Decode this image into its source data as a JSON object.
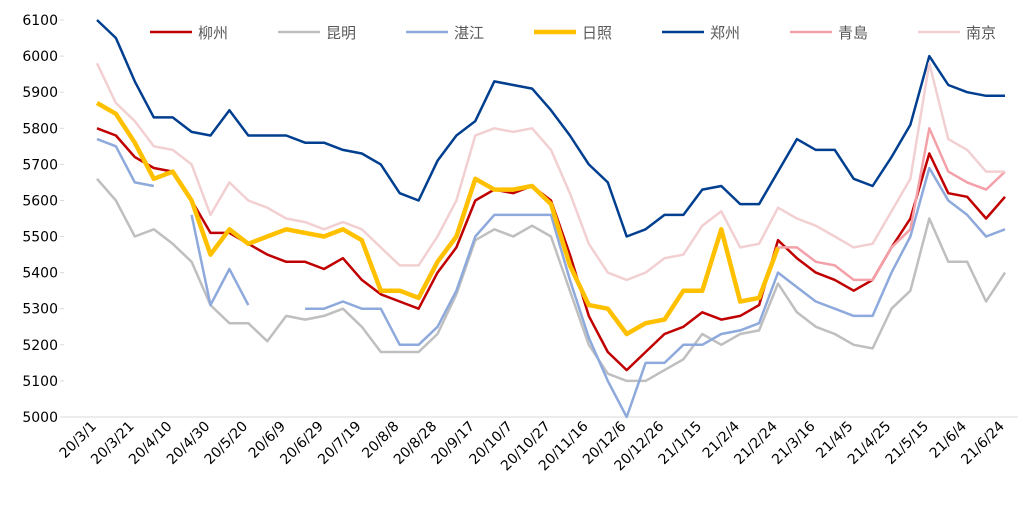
{
  "chart_data": {
    "type": "line",
    "categories": [
      "20/3/1",
      null,
      "20/3/21",
      null,
      "20/4/10",
      null,
      "20/4/30",
      null,
      "20/5/20",
      null,
      "20/6/9",
      null,
      "20/6/29",
      null,
      "20/7/19",
      null,
      "20/8/8",
      null,
      "20/8/28",
      null,
      "20/9/17",
      null,
      "20/10/7",
      null,
      "20/10/27",
      null,
      "20/11/16",
      null,
      "20/12/6",
      null,
      "20/12/26",
      null,
      "21/1/15",
      null,
      "21/2/4",
      null,
      "21/2/24",
      null,
      "21/3/16",
      null,
      "21/4/5",
      null,
      "21/4/25",
      null,
      "21/5/15",
      null,
      "21/6/4",
      null,
      "21/6/24"
    ],
    "series": [
      {
        "name": "柳州",
        "color": "#c00000",
        "width": 2.5,
        "values": [
          5800,
          5780,
          5720,
          5690,
          5680,
          5600,
          5510,
          5510,
          5480,
          5450,
          5430,
          5430,
          5410,
          5440,
          5380,
          5340,
          5320,
          5300,
          5400,
          5470,
          5600,
          5630,
          5620,
          5640,
          5600,
          5450,
          5280,
          5180,
          5130,
          5180,
          5230,
          5250,
          5290,
          5270,
          5280,
          5310,
          5490,
          5440,
          5400,
          5380,
          5350,
          5380,
          5470,
          5550,
          5730,
          5620,
          5610,
          5550,
          5610
        ]
      },
      {
        "name": "昆明",
        "color": "#bfbfbf",
        "width": 2.5,
        "values": [
          5660,
          5600,
          5500,
          5520,
          5480,
          5430,
          5310,
          5260,
          5260,
          5210,
          5280,
          5270,
          5280,
          5300,
          5250,
          5180,
          5180,
          5180,
          5230,
          5340,
          5490,
          5520,
          5500,
          5530,
          5500,
          5350,
          5200,
          5120,
          5100,
          5100,
          5130,
          5160,
          5230,
          5200,
          5230,
          5240,
          5370,
          5290,
          5250,
          5230,
          5200,
          5190,
          5300,
          5350,
          5550,
          5430,
          5430,
          5320,
          5400
        ]
      },
      {
        "name": "湛江",
        "color": "#8ea9db",
        "width": 2.5,
        "values": [
          5770,
          5750,
          5650,
          5640,
          null,
          5560,
          5310,
          5410,
          5310,
          null,
          null,
          5300,
          5300,
          5320,
          5300,
          5300,
          5200,
          5200,
          5250,
          5350,
          5500,
          5560,
          5560,
          5560,
          5560,
          5380,
          5220,
          5100,
          5000,
          5150,
          5150,
          5200,
          5200,
          5230,
          5240,
          5260,
          5400,
          5360,
          5320,
          5300,
          5280,
          5280,
          5400,
          5500,
          5690,
          5600,
          5560,
          5500,
          5520
        ]
      },
      {
        "name": "日照",
        "color": "#ffc000",
        "width": 4.5,
        "values": [
          5870,
          5840,
          5760,
          5660,
          5680,
          5600,
          5450,
          5520,
          5480,
          5500,
          5520,
          5510,
          5500,
          5520,
          5490,
          5350,
          5350,
          5330,
          5430,
          5500,
          5660,
          5630,
          5630,
          5640,
          5590,
          5420,
          5310,
          5300,
          5230,
          5260,
          5270,
          5350,
          5350,
          5520,
          5320,
          5330,
          5470,
          null,
          null,
          null,
          null,
          null,
          null,
          null,
          null,
          null,
          null,
          null,
          null
        ]
      },
      {
        "name": "郑州",
        "color": "#003f8f",
        "width": 2.5,
        "values": [
          6100,
          6050,
          5930,
          5830,
          5830,
          5790,
          5780,
          5850,
          5780,
          5780,
          5780,
          5760,
          5760,
          5740,
          5730,
          5700,
          5620,
          5600,
          5710,
          5780,
          5820,
          5930,
          5920,
          5910,
          5850,
          5780,
          5700,
          5650,
          5500,
          5520,
          5560,
          5560,
          5630,
          5640,
          5590,
          5590,
          5680,
          5770,
          5740,
          5740,
          5660,
          5640,
          5720,
          5810,
          6000,
          5920,
          5900,
          5890,
          5890
        ]
      },
      {
        "name": "青島",
        "color": "#f4a0a8",
        "width": 2.5,
        "values": [
          null,
          null,
          null,
          null,
          null,
          null,
          null,
          null,
          null,
          null,
          null,
          null,
          null,
          null,
          null,
          null,
          null,
          null,
          null,
          null,
          null,
          null,
          null,
          null,
          null,
          null,
          null,
          null,
          null,
          null,
          null,
          null,
          null,
          null,
          null,
          null,
          5470,
          5470,
          5430,
          5420,
          5380,
          5380,
          5470,
          5520,
          5800,
          5680,
          5650,
          5630,
          5680
        ]
      },
      {
        "name": "南京",
        "color": "#f2d0d2",
        "width": 2.5,
        "values": [
          5980,
          5870,
          5820,
          5750,
          5740,
          5700,
          5560,
          5650,
          5600,
          5580,
          5550,
          5540,
          5520,
          5540,
          5520,
          5470,
          5420,
          5420,
          5500,
          5600,
          5780,
          5800,
          5790,
          5800,
          5740,
          5620,
          5480,
          5400,
          5380,
          5400,
          5440,
          5450,
          5530,
          5570,
          5470,
          5480,
          5580,
          5550,
          5530,
          5500,
          5470,
          5480,
          5570,
          5660,
          5980,
          5770,
          5740,
          5680,
          5680
        ]
      }
    ],
    "ylim": [
      5000,
      6100
    ],
    "yticks": [
      5000,
      5100,
      5200,
      5300,
      5400,
      5500,
      5600,
      5700,
      5800,
      5900,
      6000,
      6100
    ],
    "grid": false
  }
}
